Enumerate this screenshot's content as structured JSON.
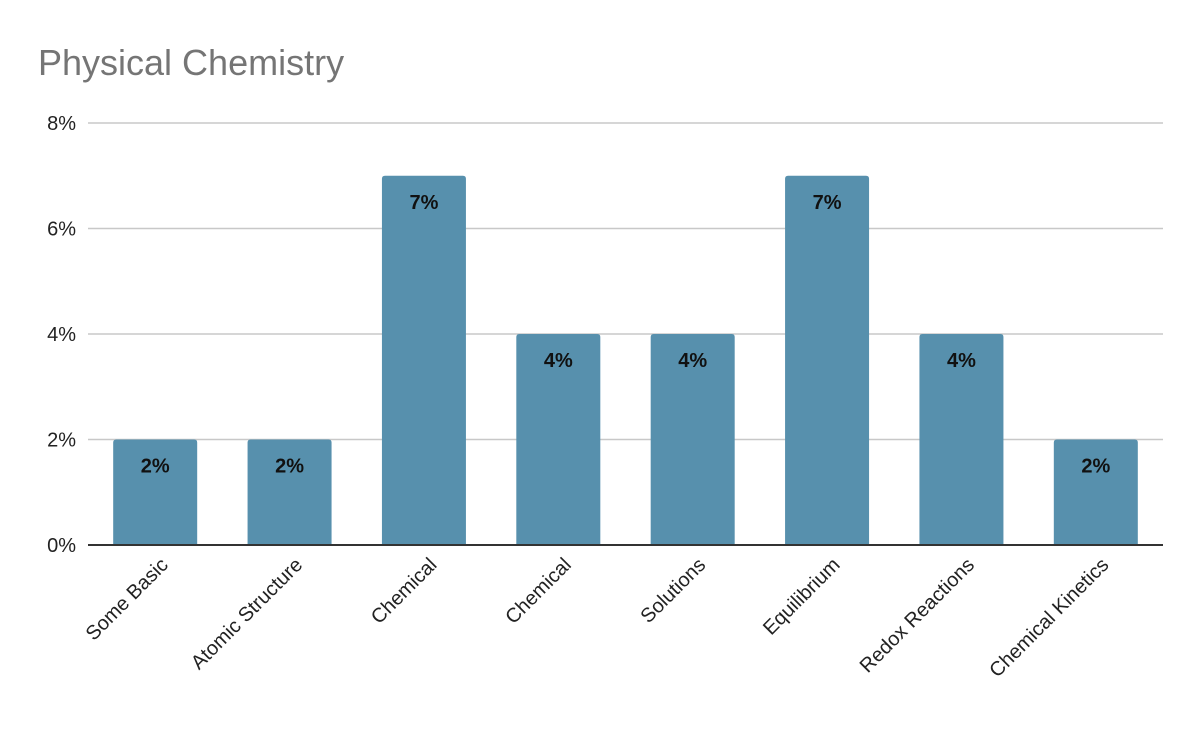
{
  "chart_data": {
    "type": "bar",
    "title": "Physical Chemistry",
    "xlabel": "",
    "ylabel": "",
    "categories": [
      "Some Basic",
      "Atomic Structure",
      "Chemical",
      "Chemical",
      "Solutions",
      "Equilibrium",
      "Redox Reactions",
      "Chemical Kinetics"
    ],
    "values": [
      2,
      2,
      7,
      4,
      4,
      7,
      4,
      2
    ],
    "data_labels": [
      "2%",
      "2%",
      "7%",
      "4%",
      "4%",
      "7%",
      "4%",
      "2%"
    ],
    "ylim": [
      0,
      8
    ],
    "yticks": [
      0,
      2,
      4,
      6,
      8
    ],
    "ytick_labels": [
      "0%",
      "2%",
      "4%",
      "6%",
      "8%"
    ],
    "grid": true,
    "legend": "none",
    "colors": {
      "bar": "#5790ad",
      "grid": "#c8c8c8",
      "axis": "#333333",
      "title": "#757575"
    }
  }
}
